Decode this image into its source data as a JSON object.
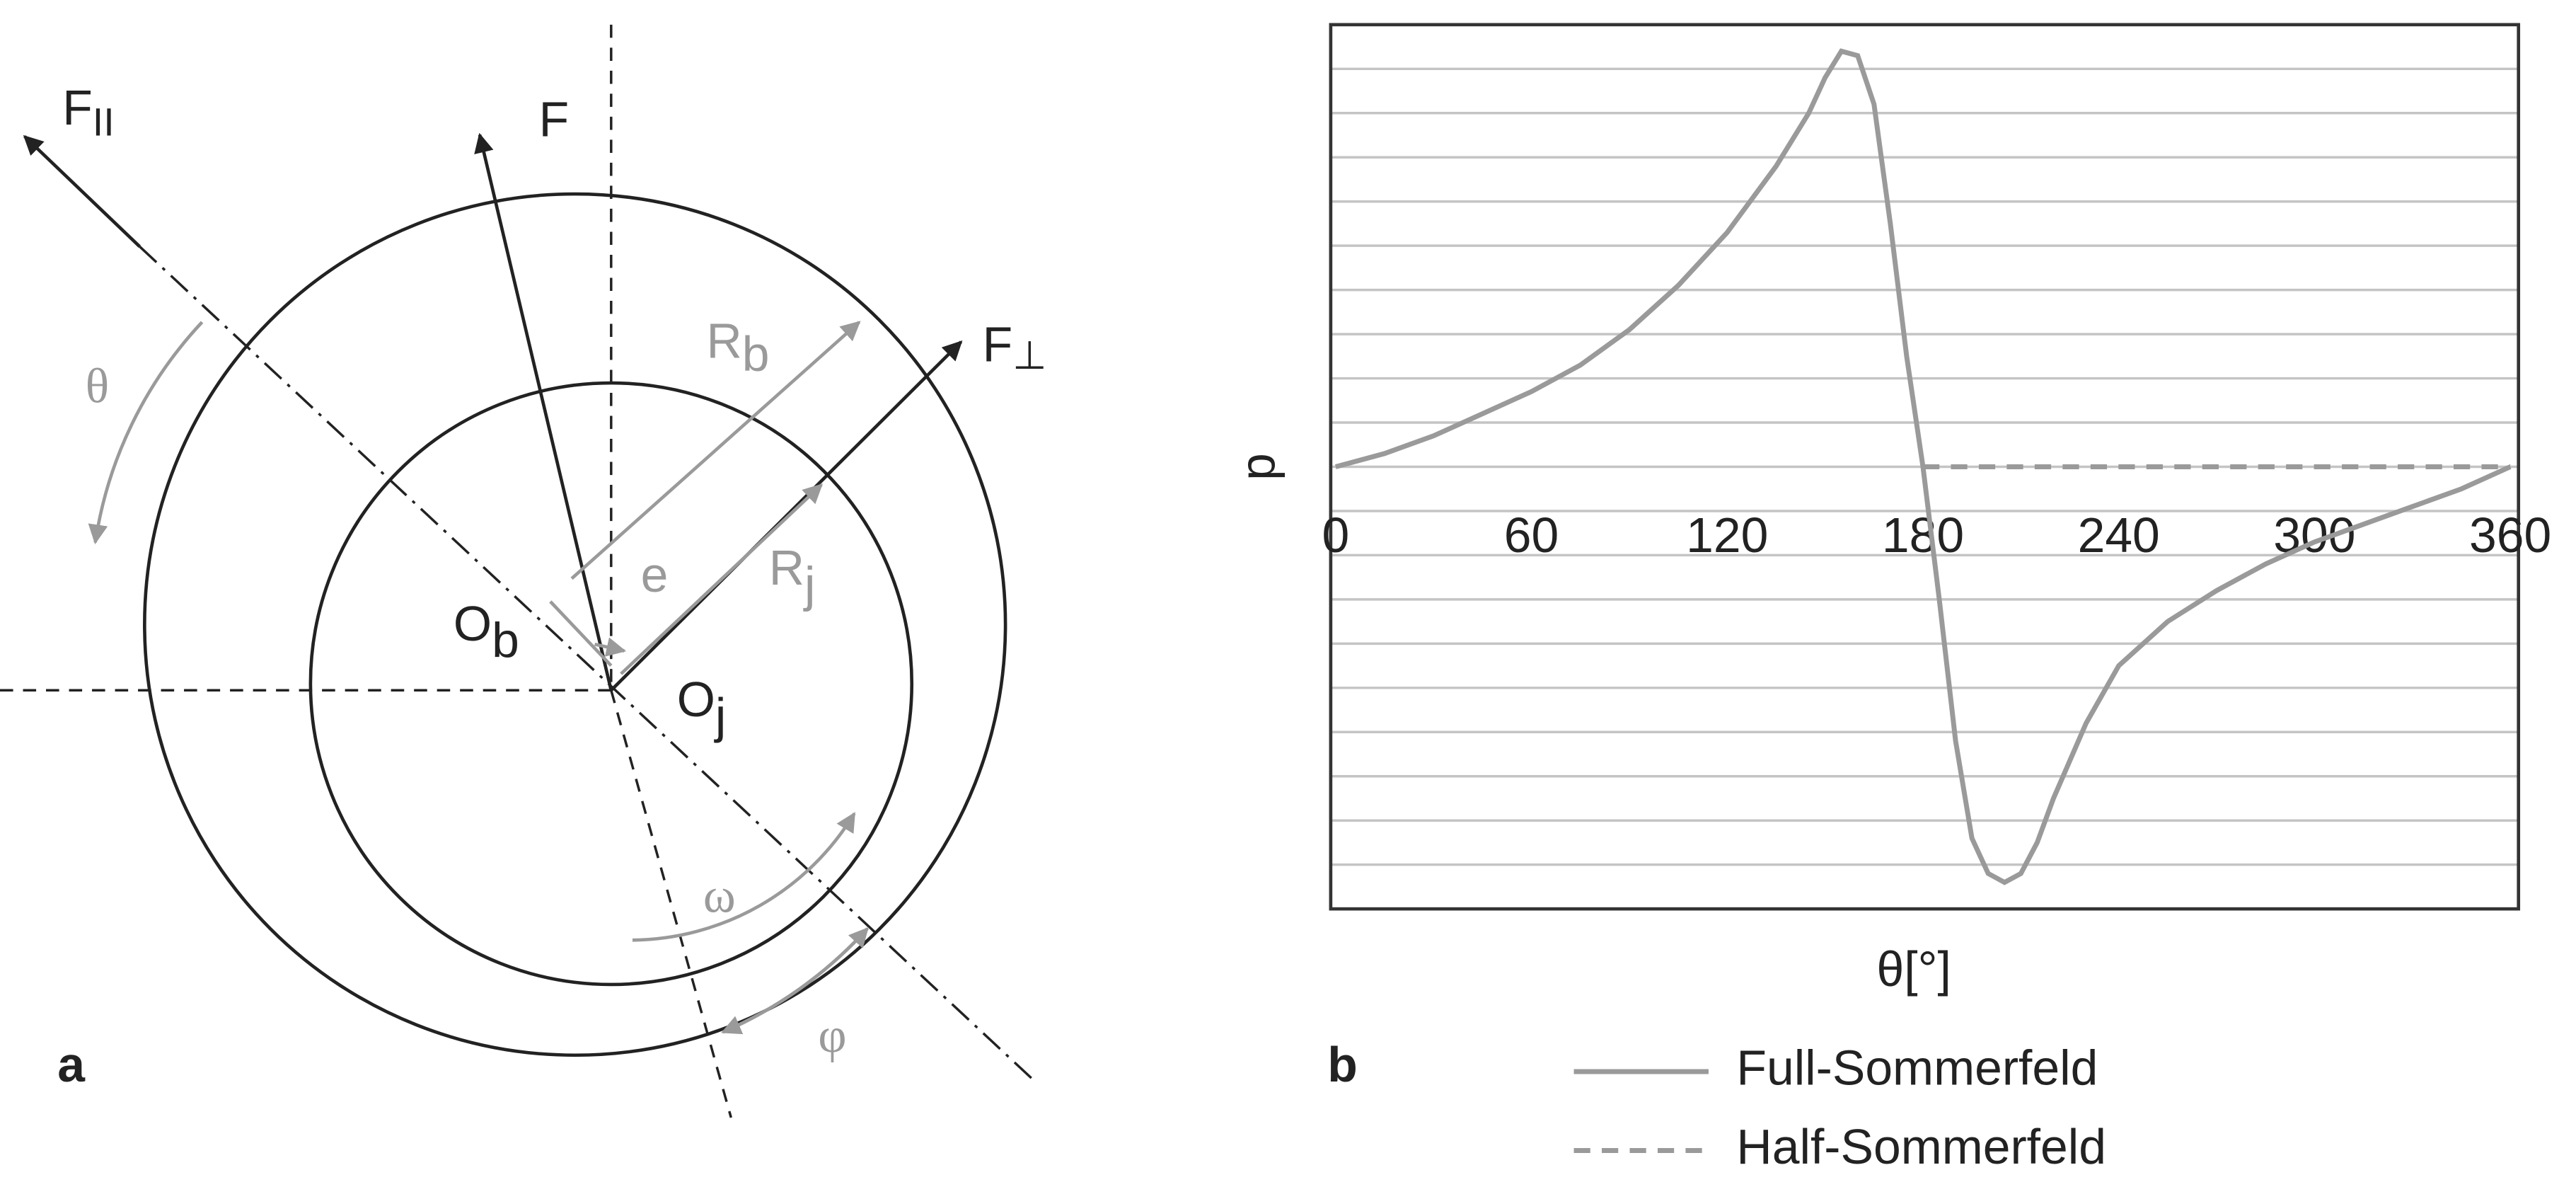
{
  "diagram": {
    "panel_a": "a",
    "panel_b": "b",
    "labels": {
      "f_par": {
        "main": "F",
        "sub": "II"
      },
      "f": "F",
      "theta": "θ",
      "r_b": {
        "main": "R",
        "sub": "b"
      },
      "f_perp": {
        "main": "F",
        "sub": "⊥"
      },
      "e": "e",
      "r_j": {
        "main": "R",
        "sub": "j"
      },
      "o_b": {
        "main": "O",
        "sub": "b"
      },
      "o_j": {
        "main": "O",
        "sub": "j"
      },
      "omega": "ω",
      "phi": "φ"
    }
  },
  "chart_data": {
    "type": "line",
    "xlabel": "θ[°]",
    "ylabel": "p",
    "xlim": [
      0,
      360
    ],
    "xticks": [
      0,
      60,
      120,
      180,
      240,
      300,
      360
    ],
    "ylim": [
      -1,
      1
    ],
    "ygrid": [
      -0.9,
      -0.8,
      -0.7,
      -0.6,
      -0.5,
      -0.4,
      -0.3,
      -0.2,
      -0.1,
      0,
      0.1,
      0.2,
      0.3,
      0.4,
      0.5,
      0.6,
      0.7,
      0.8,
      0.9
    ],
    "series": [
      {
        "name": "Full-Sommerfeld",
        "color": "#9a9a9a",
        "dash": false,
        "x": [
          0,
          15,
          30,
          45,
          60,
          75,
          90,
          105,
          120,
          135,
          145,
          150,
          155,
          160,
          165,
          170,
          175,
          180,
          185,
          190,
          195,
          200,
          205,
          210,
          215,
          220,
          230,
          240,
          255,
          270,
          285,
          300,
          315,
          330,
          345,
          360
        ],
        "values": [
          0,
          0.03,
          0.07,
          0.12,
          0.17,
          0.23,
          0.31,
          0.41,
          0.53,
          0.68,
          0.8,
          0.88,
          0.94,
          0.93,
          0.82,
          0.55,
          0.25,
          0,
          -0.3,
          -0.62,
          -0.84,
          -0.92,
          -0.94,
          -0.92,
          -0.85,
          -0.75,
          -0.58,
          -0.45,
          -0.35,
          -0.28,
          -0.22,
          -0.17,
          -0.13,
          -0.09,
          -0.05,
          0
        ]
      },
      {
        "name": "Half-Sommerfeld",
        "color": "#9a9a9a",
        "dash": true,
        "x": [
          180,
          360
        ],
        "values": [
          0,
          0
        ]
      }
    ]
  }
}
